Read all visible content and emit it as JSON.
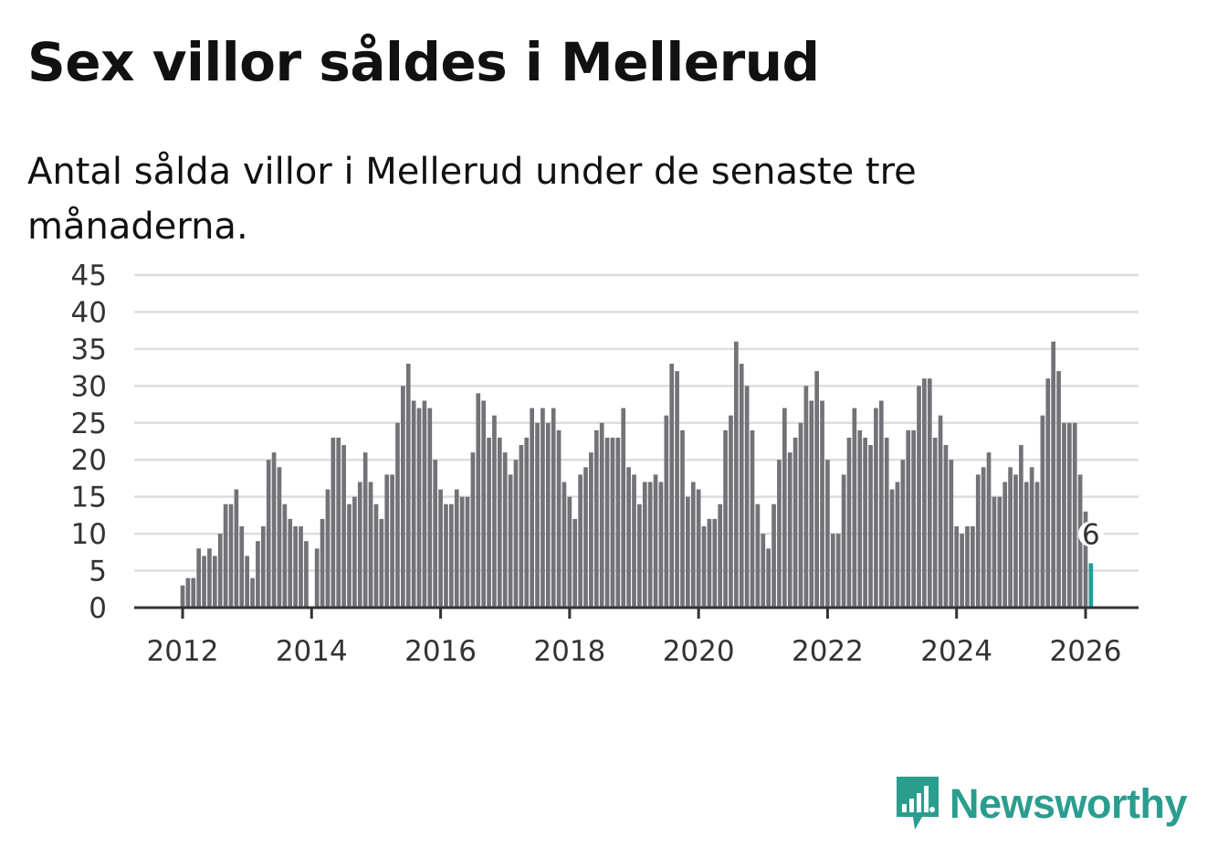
{
  "title": "Sex villor såldes i Mellerud",
  "subtitle": "Antal sålda villor i Mellerud under de senaste tre månaderna.",
  "brand": {
    "name": "Newsworthy",
    "color": "#2a9d8f"
  },
  "colors": {
    "bar": "#737277",
    "highlight": "#1f9f97",
    "grid": "#dddddd",
    "axis": "#333333"
  },
  "chart_data": {
    "type": "bar",
    "title": "Sex villor såldes i Mellerud",
    "subtitle": "Antal sålda villor i Mellerud under de senaste tre månaderna.",
    "xlabel": "",
    "ylabel": "",
    "ylim": [
      0,
      45
    ],
    "yticks": [
      0,
      5,
      10,
      15,
      20,
      25,
      30,
      35,
      40,
      45
    ],
    "xticks": [
      "2012",
      "2014",
      "2016",
      "2018",
      "2020",
      "2022",
      "2024",
      "2026"
    ],
    "start": "2011-04",
    "grid": true,
    "highlight_label": "6",
    "values": [
      0,
      0,
      0,
      0,
      0,
      0,
      0,
      0,
      0,
      3,
      4,
      4,
      8,
      7,
      8,
      7,
      10,
      14,
      14,
      16,
      11,
      7,
      4,
      9,
      11,
      20,
      21,
      19,
      14,
      12,
      11,
      11,
      9,
      0,
      8,
      12,
      16,
      23,
      23,
      22,
      14,
      15,
      17,
      21,
      17,
      14,
      12,
      18,
      18,
      25,
      30,
      33,
      28,
      27,
      28,
      27,
      20,
      16,
      14,
      14,
      16,
      15,
      15,
      21,
      29,
      28,
      23,
      26,
      23,
      21,
      18,
      20,
      22,
      23,
      27,
      25,
      27,
      25,
      27,
      24,
      17,
      15,
      12,
      18,
      19,
      21,
      24,
      25,
      23,
      23,
      23,
      27,
      19,
      18,
      14,
      17,
      17,
      18,
      17,
      26,
      33,
      32,
      24,
      15,
      17,
      16,
      11,
      12,
      12,
      14,
      24,
      26,
      36,
      33,
      30,
      24,
      14,
      10,
      8,
      14,
      20,
      27,
      21,
      23,
      25,
      30,
      28,
      32,
      28,
      20,
      10,
      10,
      18,
      23,
      27,
      24,
      23,
      22,
      27,
      28,
      23,
      16,
      17,
      20,
      24,
      24,
      30,
      31,
      31,
      23,
      26,
      22,
      20,
      11,
      10,
      11,
      11,
      18,
      19,
      21,
      15,
      15,
      17,
      19,
      18,
      22,
      17,
      19,
      17,
      26,
      31,
      36,
      32,
      25,
      25,
      25,
      18,
      13,
      6
    ]
  }
}
